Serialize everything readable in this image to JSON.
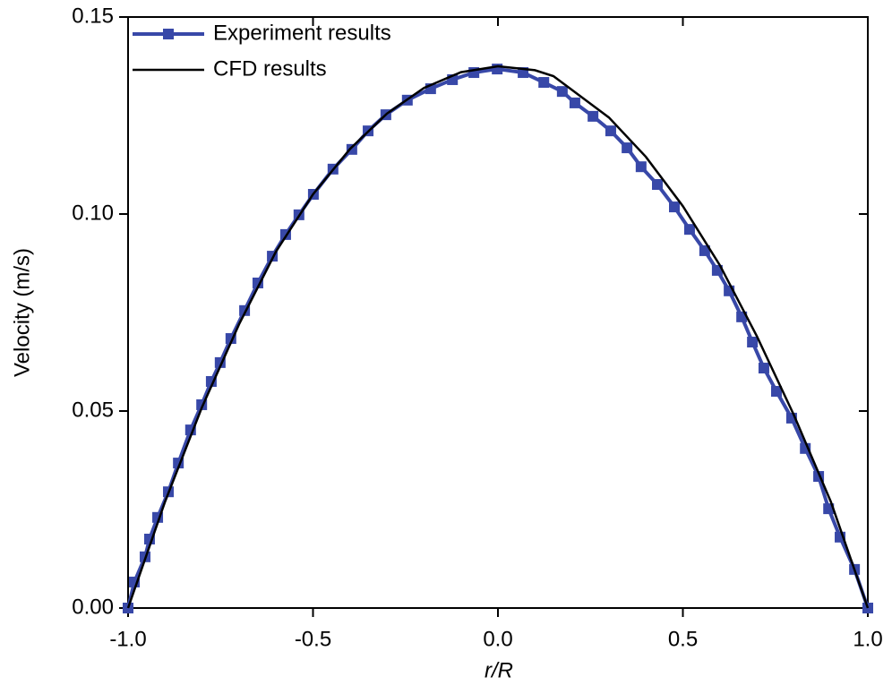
{
  "chart_data": {
    "type": "line",
    "xlabel": "r/R",
    "ylabel": "Velocity (m/s)",
    "xlim": [
      -1,
      1
    ],
    "ylim": [
      0,
      0.15
    ],
    "xticks": [
      {
        "value": -1,
        "label": "-1.0"
      },
      -0.5,
      {
        "value": 0,
        "label": "0.0"
      },
      0.5,
      {
        "value": 1,
        "label": "1.0"
      }
    ],
    "yticks": [
      {
        "value": 0,
        "label": "0.00"
      },
      {
        "value": 0.05,
        "label": "0.05"
      },
      {
        "value": 0.1,
        "label": "0.10"
      },
      {
        "value": 0.15,
        "label": "0.15"
      }
    ],
    "legend": "upper left",
    "series": [
      {
        "name": "Experiment results",
        "color": "#3848a8",
        "marker": "square",
        "x": [
          -1,
          -0.983,
          -0.954,
          -0.942,
          -0.92,
          -0.891,
          -0.864,
          -0.831,
          -0.801,
          -0.775,
          -0.751,
          -0.722,
          -0.685,
          -0.649,
          -0.61,
          -0.574,
          -0.538,
          -0.499,
          -0.446,
          -0.395,
          -0.351,
          -0.303,
          -0.245,
          -0.182,
          -0.123,
          -0.065,
          -0.002,
          0.068,
          0.124,
          0.174,
          0.208,
          0.257,
          0.305,
          0.349,
          0.387,
          0.431,
          0.477,
          0.518,
          0.559,
          0.593,
          0.625,
          0.659,
          0.688,
          0.719,
          0.753,
          0.794,
          0.831,
          0.867,
          0.894,
          0.925,
          0.964,
          1
        ],
        "values": [
          0,
          0.0066,
          0.013,
          0.0175,
          0.023,
          0.0295,
          0.0368,
          0.0452,
          0.0516,
          0.0575,
          0.0623,
          0.0684,
          0.0755,
          0.0825,
          0.0893,
          0.0948,
          0.0998,
          0.105,
          0.1114,
          0.1164,
          0.1211,
          0.1252,
          0.1289,
          0.1318,
          0.1341,
          0.1359,
          0.1368,
          0.1359,
          0.1334,
          0.1311,
          0.1282,
          0.1248,
          0.1211,
          0.1168,
          0.112,
          0.1075,
          0.1018,
          0.0961,
          0.0907,
          0.0857,
          0.0805,
          0.0739,
          0.0675,
          0.0609,
          0.055,
          0.0482,
          0.0405,
          0.0334,
          0.0252,
          0.018,
          0.0098,
          0
        ]
      },
      {
        "name": "CFD results",
        "color": "#000000",
        "x": [
          -1,
          -0.9,
          -0.8,
          -0.7,
          -0.6,
          -0.5,
          -0.4,
          -0.3,
          -0.2,
          -0.1,
          0,
          0.1,
          0.15,
          0.2,
          0.3,
          0.4,
          0.5,
          0.6,
          0.7,
          0.8,
          0.9,
          1
        ],
        "values": [
          0,
          0.027,
          0.051,
          0.072,
          0.0905,
          0.105,
          0.1165,
          0.1255,
          0.132,
          0.136,
          0.1375,
          0.1365,
          0.135,
          0.1315,
          0.1245,
          0.1145,
          0.102,
          0.087,
          0.069,
          0.049,
          0.027,
          0
        ]
      }
    ]
  }
}
